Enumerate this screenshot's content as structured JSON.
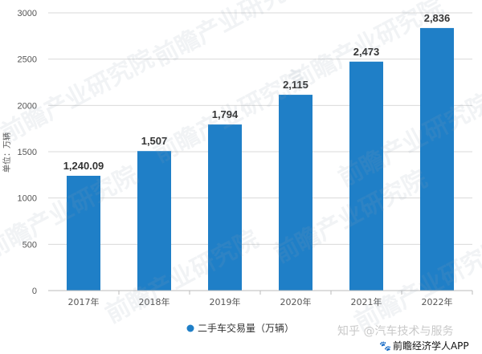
{
  "chart_data": {
    "type": "bar",
    "categories": [
      "2017年",
      "2018年",
      "2019年",
      "2020年",
      "2021年",
      "2022年"
    ],
    "values": [
      1240.09,
      1507,
      1794,
      2115,
      2473,
      2836
    ],
    "value_labels": [
      "1,240.09",
      "1,507",
      "1,794",
      "2,115",
      "2,473",
      "2,836"
    ],
    "ylabel": "单位：万辆",
    "ylim": [
      0,
      3000
    ],
    "yticks": [
      0,
      500,
      1000,
      1500,
      2000,
      2500,
      3000
    ],
    "series": [
      {
        "name": "二手车交易量（万辆）",
        "color": "#1f7fc7"
      }
    ],
    "legend_position": "bottom-center",
    "grid": true
  },
  "watermark": {
    "text": "前瞻产业研究院"
  },
  "footer": {
    "brand": "知乎 @汽车技术与服务",
    "app": "前瞻经济学人APP"
  }
}
